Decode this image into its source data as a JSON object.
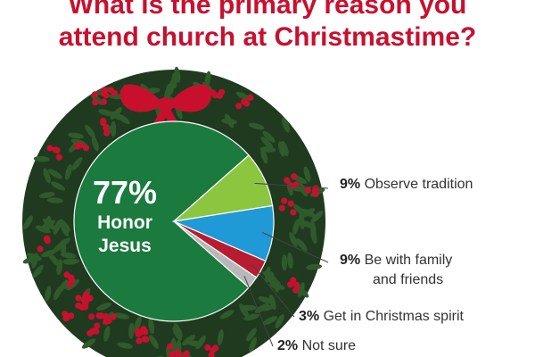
{
  "title": {
    "line1": "What is the primary reason you",
    "line2": "attend church at Christmastime?"
  },
  "colors": {
    "title": "#c8102e",
    "wreath_dark": "#1f3a1f",
    "wreath_leaf": "#2f5a2b",
    "berry": "#c8102e",
    "bow": "#c8102e",
    "slice_honor": "#1b7a3e",
    "slice_tradition": "#8cc63f",
    "slice_family": "#1f9ad6",
    "slice_spirit": "#b71c30",
    "slice_notsure": "#b8b8b8"
  },
  "chart_data": {
    "type": "pie",
    "title": "What is the primary reason you attend church at Christmastime?",
    "unit": "%",
    "slices": [
      {
        "pct_text": "77%",
        "value": 77,
        "label_lines": [
          "Honor",
          "Jesus"
        ],
        "color": "#1b7a3e"
      },
      {
        "pct_text": "9%",
        "value": 9,
        "label_lines": [
          "Observe tradition"
        ],
        "color": "#8cc63f"
      },
      {
        "pct_text": "9%",
        "value": 9,
        "label_lines": [
          "Be with family",
          "and friends"
        ],
        "color": "#1f9ad6"
      },
      {
        "pct_text": "3%",
        "value": 3,
        "label_lines": [
          "Get in Christmas spirit"
        ],
        "color": "#b71c30"
      },
      {
        "pct_text": "2%",
        "value": 2,
        "label_lines": [
          "Not sure"
        ],
        "color": "#b8b8b8"
      }
    ]
  }
}
